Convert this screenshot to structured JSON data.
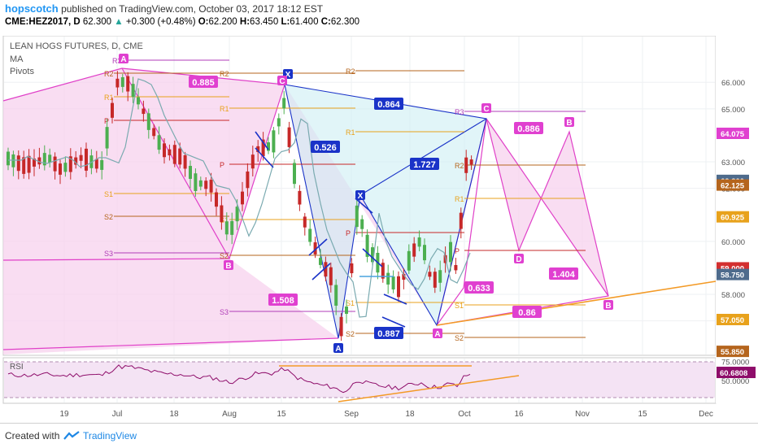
{
  "header": {
    "author": "hopscotch",
    "published": "published on TradingView.com, October 03, 2017 18:12 EST",
    "symbol": "CME:HEZ2017, D",
    "last": "62.300",
    "change": "+0.300 (+0.48%)",
    "o_label": "O:",
    "o": "62.200",
    "h_label": "H:",
    "h": "63.450",
    "l_label": "L:",
    "l": "61.400",
    "c_label": "C:",
    "c": "62.300"
  },
  "legend": {
    "title": "LEAN HOGS FUTURES, D, CME",
    "ma": "MA",
    "pivots": "Pivots"
  },
  "footer": {
    "created_with": "Created with",
    "brand": "TradingView"
  },
  "colors": {
    "pattern_fill": "#f7d2ee",
    "pattern_line": "#e040c8",
    "label_magenta": "#e040d0",
    "label_blue": "#1a33c8",
    "trend_orange": "#f39a26",
    "pivot_orange": "#e8a21c",
    "pivot_dark": "#b5651d",
    "pivot_purple": "#b13db8",
    "pivot_red": "#c62828",
    "up_candle": "#4caf50",
    "down_candle": "#c62828",
    "ma_line": "#7aaab0",
    "rsi_line": "#8e0d6a"
  },
  "chart_data": [
    {
      "type": "candlestick",
      "x_ticks": [
        "19",
        "Jul",
        "18",
        "Aug",
        "15",
        "Sep",
        "18",
        "Oct",
        "16",
        "Nov",
        "15",
        "Dec"
      ],
      "y_ticks": [
        "66.000",
        "65.000",
        "63.000",
        "62.000",
        "60.000",
        "58.000",
        "57.000",
        "55.000"
      ],
      "ylim": [
        55.0,
        66.6
      ],
      "price_labels": [
        {
          "text": "64.075",
          "value": 64.075,
          "color": "#e040d0"
        },
        {
          "text": "62.300",
          "value": 62.3,
          "color": "#4e6b8c"
        },
        {
          "text": "62.125",
          "value": 62.125,
          "color": "#b5651d"
        },
        {
          "text": "60.925",
          "value": 60.925,
          "color": "#e8a21c"
        },
        {
          "text": "59.000",
          "value": 59.0,
          "color": "#d32f2f"
        },
        {
          "text": "58.750",
          "value": 58.75,
          "color": "#4e6b8c"
        },
        {
          "text": "57.050",
          "value": 57.05,
          "color": "#e8a21c"
        },
        {
          "text": "55.850",
          "value": 55.85,
          "color": "#b5651d"
        }
      ],
      "pivot_labels": [
        "R3",
        "R2",
        "R1",
        "P",
        "S1",
        "S2",
        "S3"
      ],
      "harmonic_ratios": [
        "0.885",
        "0.864",
        "0.526",
        "1.727",
        "0.886",
        "1.508",
        "0.887",
        "0.633",
        "1.404",
        "0.86"
      ],
      "pattern_points": [
        "A",
        "X",
        "C",
        "B",
        "A",
        "X",
        "A",
        "C",
        "B",
        "D",
        "B"
      ],
      "trend_lines": 2
    },
    {
      "type": "line",
      "title": "RSI",
      "y_ticks": [
        "75.0000",
        "50.0000"
      ],
      "last_value": "60.6808",
      "ylim": [
        20,
        80
      ]
    }
  ]
}
